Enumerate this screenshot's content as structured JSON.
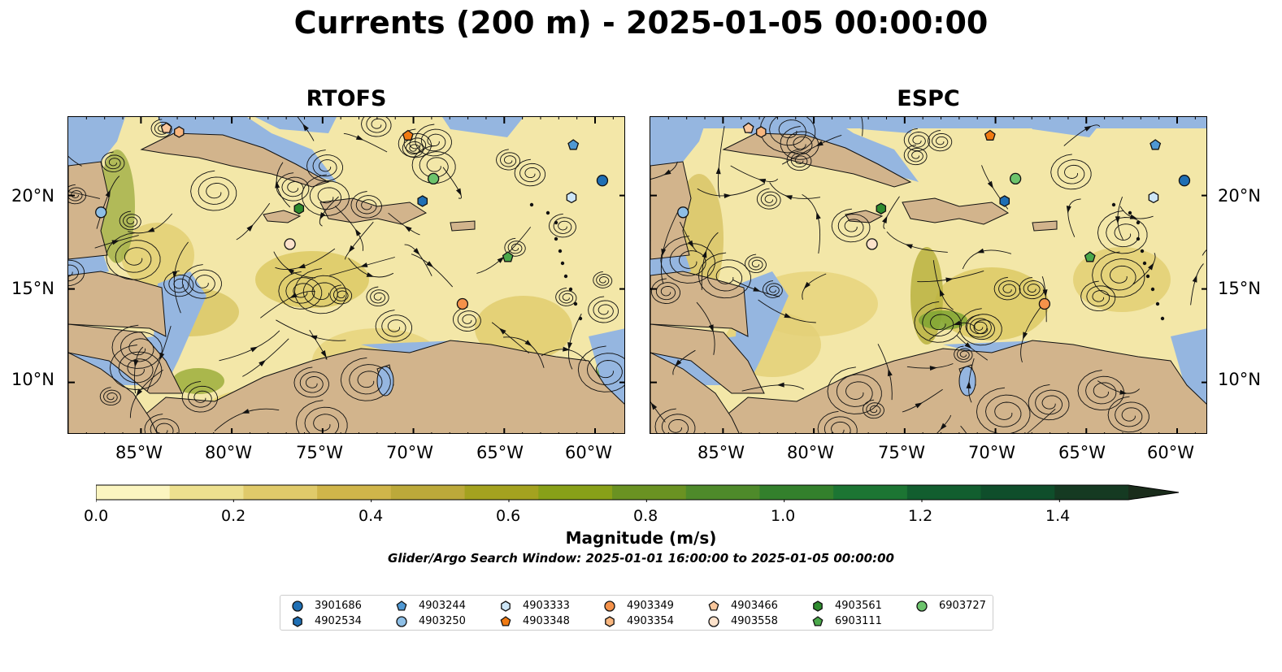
{
  "title": "Currents (200 m) - 2025-01-05 00:00:00",
  "panels": [
    {
      "title": "RTOFS"
    },
    {
      "title": "ESPC"
    }
  ],
  "axes": {
    "x_ticks": [
      "85°W",
      "80°W",
      "75°W",
      "70°W",
      "65°W",
      "60°W"
    ],
    "y_ticks": [
      "20°N",
      "15°N",
      "10°N"
    ],
    "lon_range": [
      -89,
      -58.3
    ],
    "lat_range": [
      7.2,
      24.2
    ]
  },
  "colorbar": {
    "label": "Magnitude (m/s)",
    "ticks": [
      "0.0",
      "0.2",
      "0.4",
      "0.6",
      "0.8",
      "1.0",
      "1.2",
      "1.4"
    ],
    "range": [
      0,
      1.5
    ],
    "extend": "max",
    "colors": [
      "#fbf5c0",
      "#ede08f",
      "#e0ca6a",
      "#d0b54a",
      "#bca93a",
      "#a4a21f",
      "#88a018",
      "#6a9222",
      "#4e8a2a",
      "#33802c",
      "#1c7533",
      "#125e2f",
      "#0f4e2b",
      "#153a22",
      "#1a2c1b"
    ]
  },
  "subtitle": "Glider/Argo Search Window: 2025-01-01 16:00:00 to 2025-01-05 00:00:00",
  "colors": {
    "ocean_field": "#f3e7a8",
    "land": "#d2b48c",
    "shallow": "#95b6e0"
  },
  "legend": [
    {
      "id": "3901686",
      "marker": "circle",
      "color": "#1f6fb4"
    },
    {
      "id": "4902534",
      "marker": "hexagon",
      "color": "#1f6fb4"
    },
    {
      "id": "4903244",
      "marker": "pentagon",
      "color": "#4f98d3"
    },
    {
      "id": "4903250",
      "marker": "circle",
      "color": "#8ebfe6"
    },
    {
      "id": "4903333",
      "marker": "hexagon",
      "color": "#cde6f7"
    },
    {
      "id": "4903348",
      "marker": "pentagon",
      "color": "#f07a12"
    },
    {
      "id": "4903349",
      "marker": "circle",
      "color": "#f5924a"
    },
    {
      "id": "4903354",
      "marker": "hexagon",
      "color": "#f8b67f"
    },
    {
      "id": "4903466",
      "marker": "pentagon",
      "color": "#fac79c"
    },
    {
      "id": "4903558",
      "marker": "circle",
      "color": "#fde2cb"
    },
    {
      "id": "4903561",
      "marker": "hexagon",
      "color": "#2e8b2e"
    },
    {
      "id": "6903111",
      "marker": "pentagon",
      "color": "#4aa84a"
    },
    {
      "id": "6903727",
      "marker": "circle",
      "color": "#6cc46c"
    }
  ],
  "floats": [
    {
      "id": "3901686",
      "lon": -59.6,
      "lat": 20.8
    },
    {
      "id": "4902534",
      "lon": -69.5,
      "lat": 19.7
    },
    {
      "id": "4903244",
      "lon": -61.2,
      "lat": 22.7
    },
    {
      "id": "4903250",
      "lon": -87.2,
      "lat": 19.1
    },
    {
      "id": "4903333",
      "lon": -61.3,
      "lat": 19.9
    },
    {
      "id": "4903348",
      "lon": -70.3,
      "lat": 23.2
    },
    {
      "id": "4903349",
      "lon": -67.3,
      "lat": 14.2
    },
    {
      "id": "4903354",
      "lon": -82.9,
      "lat": 23.4
    },
    {
      "id": "4903466",
      "lon": -83.6,
      "lat": 23.6
    },
    {
      "id": "4903558",
      "lon": -76.8,
      "lat": 17.4
    },
    {
      "id": "4903561",
      "lon": -76.3,
      "lat": 19.3
    },
    {
      "id": "6903111",
      "lon": -64.8,
      "lat": 16.7
    },
    {
      "id": "6903727",
      "lon": -68.9,
      "lat": 20.9
    }
  ]
}
